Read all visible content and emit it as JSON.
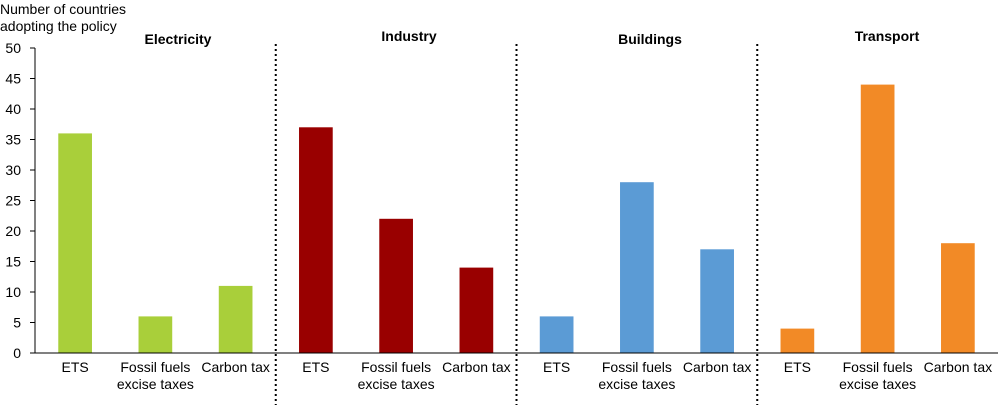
{
  "chart_data": {
    "type": "bar",
    "ylabel_lines": [
      "Number of countries",
      "adopting the policy"
    ],
    "ylim": [
      0,
      50
    ],
    "yticks": [
      0,
      5,
      10,
      15,
      20,
      25,
      30,
      35,
      40,
      45,
      50
    ],
    "categories": [
      "ETS",
      "Fossil fuels excise taxes",
      "Carbon tax"
    ],
    "category_label_lines": [
      [
        "ETS"
      ],
      [
        "Fossil fuels",
        "excise taxes"
      ],
      [
        "Carbon tax"
      ]
    ],
    "grid": false,
    "panels": [
      {
        "title": "Electricity",
        "color": "#A9CF3A",
        "values": [
          36,
          6,
          11
        ]
      },
      {
        "title": "Industry",
        "color": "#990000",
        "values": [
          37,
          22,
          14
        ]
      },
      {
        "title": "Buildings",
        "color": "#5B9BD5",
        "values": [
          6,
          28,
          17
        ]
      },
      {
        "title": "Transport",
        "color": "#F28A26",
        "values": [
          4,
          44,
          18
        ]
      }
    ]
  }
}
